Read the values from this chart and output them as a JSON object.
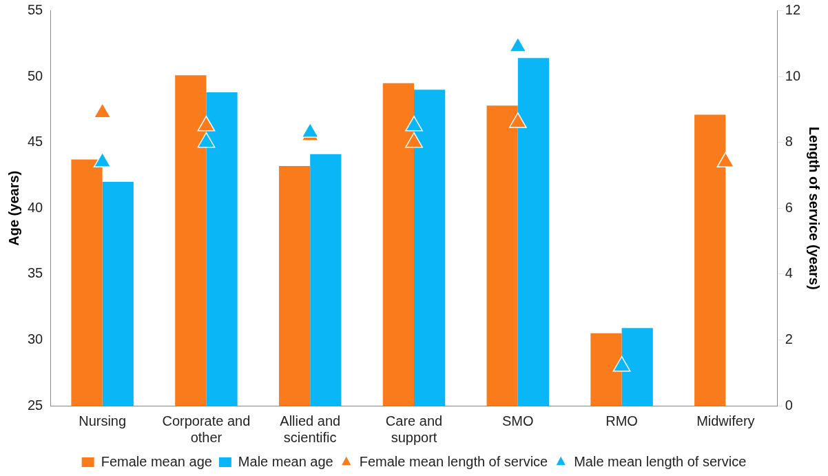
{
  "chart_data": {
    "type": "bar",
    "ylabel": "Age (years)",
    "y2label": "Length of service (years)",
    "categories": [
      "Nursing",
      "Corporate and other",
      "Allied and scientific",
      "Care and support",
      "SMO",
      "RMO",
      "Midwifery"
    ],
    "series": [
      {
        "name": "Female mean age",
        "color": "#f97b1c",
        "values": [
          43.7,
          50.1,
          43.2,
          49.5,
          47.8,
          30.5,
          47.1
        ]
      },
      {
        "name": "Male mean age",
        "color": "#0ab6f5",
        "values": [
          42.0,
          48.8,
          44.1,
          49.0,
          51.4,
          30.9,
          null
        ]
      },
      {
        "name": "Female mean length of service",
        "type": "scatter",
        "axis": "y2",
        "color": "#f97b1c",
        "x": [
          "Nursing",
          "Corporate and other",
          "Allied and scientific",
          "Care and support",
          "SMO",
          "RMO",
          "Midwifery"
        ],
        "values": [
          8.9,
          8.5,
          8.2,
          8.0,
          8.6,
          null,
          7.4
        ]
      },
      {
        "name": "Male mean length of service",
        "type": "scatter",
        "axis": "y2",
        "color": "#0ab6f5",
        "x": [
          "Nursing",
          "Corporate and other",
          "Allied and scientific",
          "Care and support",
          "SMO",
          "RMO",
          "Midwifery"
        ],
        "values": [
          7.4,
          8.0,
          8.3,
          8.5,
          10.9,
          1.2,
          null
        ]
      }
    ],
    "ylim": [
      25,
      55
    ],
    "yticks": [
      25,
      30,
      35,
      40,
      45,
      50,
      55
    ],
    "y2lim": [
      0,
      12
    ],
    "y2ticks": [
      0,
      2,
      4,
      6,
      8,
      10,
      12
    ],
    "marker": "triangle",
    "grid": false,
    "legend": "bottom"
  }
}
